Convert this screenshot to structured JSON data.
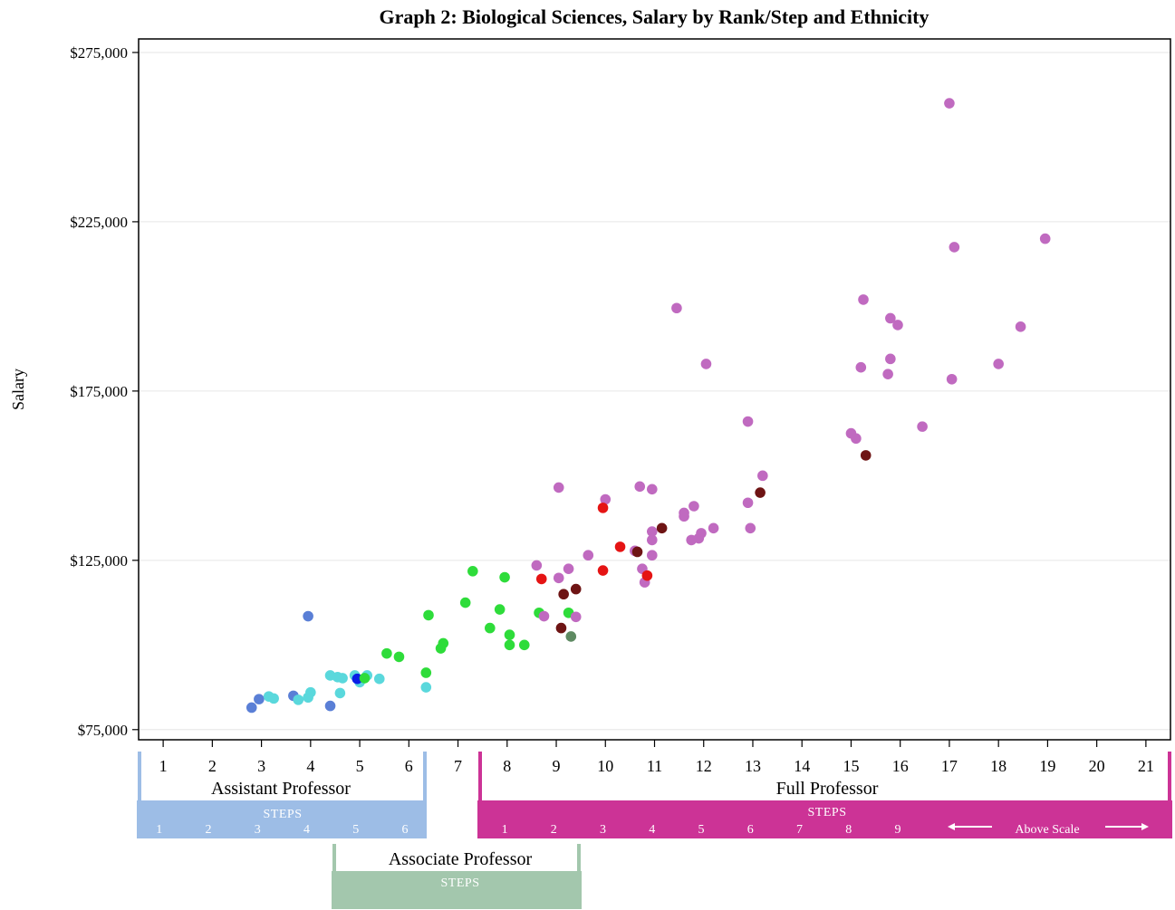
{
  "chart_data": {
    "type": "scatter",
    "title": "Graph 2: Biological Sciences, Salary by Rank/Step and Ethnicity",
    "xlabel": "",
    "ylabel": "Salary",
    "xlim": [
      0.5,
      21.5
    ],
    "ylim": [
      72000,
      279000
    ],
    "x_ticks": [
      "1",
      "2",
      "3",
      "4",
      "5",
      "6",
      "7",
      "8",
      "9",
      "10",
      "11",
      "12",
      "13",
      "14",
      "15",
      "16",
      "17",
      "18",
      "19",
      "20",
      "21"
    ],
    "y_ticks": [
      {
        "value": 75000,
        "label": "$75,000"
      },
      {
        "value": 125000,
        "label": "$125,000"
      },
      {
        "value": 175000,
        "label": "$175,000"
      },
      {
        "value": 225000,
        "label": "$225,000"
      },
      {
        "value": 275000,
        "label": "$275,000"
      }
    ],
    "grid": true,
    "series": [
      {
        "color": "#5a7fd6",
        "points": [
          [
            2.8,
            81500
          ],
          [
            2.95,
            84000
          ],
          [
            3.65,
            85000
          ],
          [
            4.4,
            82000
          ],
          [
            3.95,
            108500
          ]
        ]
      },
      {
        "color": "#5ad8dc",
        "points": [
          [
            3.15,
            84800
          ],
          [
            3.25,
            84200
          ],
          [
            3.75,
            83800
          ],
          [
            3.95,
            84500
          ],
          [
            4.0,
            86000
          ],
          [
            4.4,
            91000
          ],
          [
            4.55,
            90500
          ],
          [
            4.65,
            90200
          ],
          [
            4.6,
            85800
          ],
          [
            4.9,
            91000
          ],
          [
            5.0,
            89000
          ],
          [
            5.15,
            91000
          ],
          [
            5.4,
            90000
          ],
          [
            6.35,
            87500
          ]
        ]
      },
      {
        "color": "#0a1ee6",
        "points": [
          [
            4.95,
            90000
          ]
        ]
      },
      {
        "color": "#2edc3a",
        "points": [
          [
            5.1,
            90200
          ],
          [
            5.55,
            97500
          ],
          [
            5.8,
            96500
          ],
          [
            6.35,
            91800
          ],
          [
            6.4,
            108800
          ],
          [
            6.65,
            99000
          ],
          [
            6.7,
            100500
          ],
          [
            7.15,
            112500
          ],
          [
            7.3,
            121800
          ],
          [
            7.65,
            105000
          ],
          [
            7.85,
            110500
          ],
          [
            7.95,
            120000
          ],
          [
            8.05,
            103000
          ],
          [
            8.05,
            100000
          ],
          [
            8.35,
            100000
          ],
          [
            8.65,
            109500
          ],
          [
            9.25,
            109500
          ]
        ]
      },
      {
        "color": "#5e8a62",
        "points": [
          [
            9.3,
            102500
          ]
        ]
      },
      {
        "color": "#c06ac0",
        "points": [
          [
            8.6,
            123500
          ],
          [
            8.75,
            108500
          ],
          [
            9.05,
            119800
          ],
          [
            9.05,
            146500
          ],
          [
            9.25,
            122500
          ],
          [
            9.4,
            108300
          ],
          [
            9.65,
            126500
          ],
          [
            10.0,
            143000
          ],
          [
            10.6,
            127800
          ],
          [
            10.7,
            146800
          ],
          [
            10.75,
            122500
          ],
          [
            10.8,
            118500
          ],
          [
            10.95,
            146000
          ],
          [
            10.95,
            126500
          ],
          [
            10.95,
            131000
          ],
          [
            10.95,
            133500
          ],
          [
            11.45,
            199500
          ],
          [
            11.6,
            138000
          ],
          [
            11.6,
            139000
          ],
          [
            11.75,
            131000
          ],
          [
            11.8,
            141000
          ],
          [
            11.9,
            131500
          ],
          [
            11.95,
            133000
          ],
          [
            12.05,
            183000
          ],
          [
            12.2,
            134500
          ],
          [
            12.9,
            142000
          ],
          [
            12.9,
            166000
          ],
          [
            12.95,
            134500
          ],
          [
            13.2,
            150000
          ],
          [
            15.0,
            162500
          ],
          [
            15.1,
            161000
          ],
          [
            15.2,
            182000
          ],
          [
            15.25,
            202000
          ],
          [
            15.75,
            180000
          ],
          [
            15.8,
            196500
          ],
          [
            15.8,
            184500
          ],
          [
            15.95,
            194500
          ],
          [
            16.45,
            164500
          ],
          [
            17.0,
            260000
          ],
          [
            17.05,
            178500
          ],
          [
            17.1,
            217500
          ],
          [
            18.0,
            183000
          ],
          [
            18.45,
            194000
          ],
          [
            18.95,
            220000
          ]
        ]
      },
      {
        "color": "#e51414",
        "points": [
          [
            8.7,
            119500
          ],
          [
            9.95,
            140500
          ],
          [
            9.95,
            122000
          ],
          [
            10.3,
            129000
          ],
          [
            10.85,
            120500
          ]
        ]
      },
      {
        "color": "#6e1414",
        "points": [
          [
            9.1,
            105000
          ],
          [
            9.15,
            115000
          ],
          [
            9.4,
            116500
          ],
          [
            10.65,
            127500
          ],
          [
            11.15,
            134500
          ],
          [
            13.15,
            145000
          ],
          [
            15.3,
            156000
          ]
        ]
      }
    ]
  },
  "rank_labels": {
    "assistant": {
      "title": "Assistant Professor",
      "steps": "STEPS",
      "step_numbers": [
        "1",
        "2",
        "3",
        "4",
        "5",
        "6"
      ]
    },
    "associate": {
      "title": "Associate Professor",
      "steps": "STEPS"
    },
    "full": {
      "title": "Full Professor",
      "steps": "STEPS",
      "step_numbers": [
        "1",
        "2",
        "3",
        "4",
        "5",
        "6",
        "7",
        "8",
        "9"
      ],
      "above_scale": "Above Scale"
    }
  },
  "colors": {
    "assistant_band": "#9dbde6",
    "associate_band": "#a3c7ad",
    "full_band": "#cc3396",
    "gridline": "#e6e6e6"
  }
}
